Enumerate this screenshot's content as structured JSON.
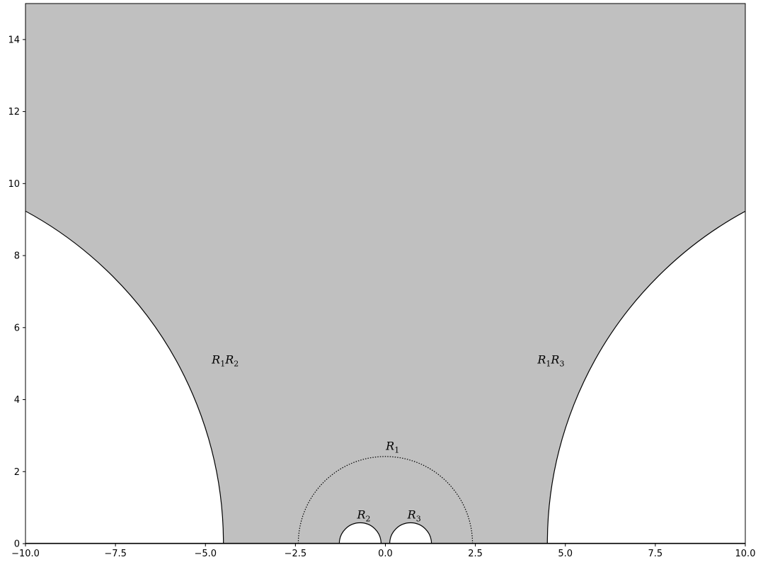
{
  "chart_data": {
    "type": "area",
    "xlim": [
      -10,
      10
    ],
    "ylim": [
      0,
      15
    ],
    "x_ticks": [
      {
        "value": -10,
        "label": "−10.0"
      },
      {
        "value": -7.5,
        "label": "−7.5"
      },
      {
        "value": -5,
        "label": "−5.0"
      },
      {
        "value": -2.5,
        "label": "−2.5"
      },
      {
        "value": 0,
        "label": "0.0"
      },
      {
        "value": 2.5,
        "label": "2.5"
      },
      {
        "value": 5,
        "label": "5.0"
      },
      {
        "value": 7.5,
        "label": "7.5"
      },
      {
        "value": 10,
        "label": "10.0"
      }
    ],
    "y_ticks": [
      {
        "value": 0,
        "label": "0"
      },
      {
        "value": 2,
        "label": "2"
      },
      {
        "value": 4,
        "label": "4"
      },
      {
        "value": 6,
        "label": "6"
      },
      {
        "value": 8,
        "label": "8"
      },
      {
        "value": 10,
        "label": "10"
      },
      {
        "value": 12,
        "label": "12"
      },
      {
        "value": 14,
        "label": "14"
      }
    ],
    "fill_color": "#c0c0c0",
    "geodesics": [
      {
        "name": "R1R2-boundary",
        "center": -15.0,
        "radius": 10.5,
        "style": "solid",
        "side": "left"
      },
      {
        "name": "R1R3-boundary",
        "center": 15.0,
        "radius": 10.5,
        "style": "solid",
        "side": "right"
      },
      {
        "name": "R1-circle",
        "center": 0.0,
        "radius": 2.42,
        "style": "dotted"
      },
      {
        "name": "R2-circle",
        "center": -0.7,
        "radius": 0.58,
        "style": "solid",
        "hole": true
      },
      {
        "name": "R3-circle",
        "center": 0.7,
        "radius": 0.58,
        "style": "solid",
        "hole": true
      }
    ],
    "annotations": [
      {
        "name": "label-r1r2",
        "x": -4.45,
        "y": 5.1,
        "main": "R",
        "sub": "1",
        "main2": "R",
        "sub2": "2"
      },
      {
        "name": "label-r1r3",
        "x": 4.6,
        "y": 5.1,
        "main": "R",
        "sub": "1",
        "main2": "R",
        "sub2": "3"
      },
      {
        "name": "label-r1",
        "x": 0.2,
        "y": 2.7,
        "main": "R",
        "sub": "1"
      },
      {
        "name": "label-r2",
        "x": -0.6,
        "y": 0.8,
        "main": "R",
        "sub": "2"
      },
      {
        "name": "label-r3",
        "x": 0.8,
        "y": 0.8,
        "main": "R",
        "sub": "3"
      }
    ]
  }
}
